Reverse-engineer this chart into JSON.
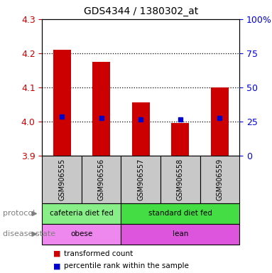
{
  "title": "GDS4344 / 1380302_at",
  "samples": [
    "GSM906555",
    "GSM906556",
    "GSM906557",
    "GSM906558",
    "GSM906559"
  ],
  "bar_values": [
    4.21,
    4.175,
    4.055,
    3.995,
    4.1
  ],
  "bar_bottom": 3.9,
  "percentile_values": [
    4.015,
    4.01,
    4.005,
    4.005,
    4.01
  ],
  "ylim": [
    3.9,
    4.3
  ],
  "yticks_left": [
    3.9,
    4.0,
    4.1,
    4.2,
    4.3
  ],
  "yticks_right": [
    0,
    25,
    50,
    75,
    100
  ],
  "yticks_right_labels": [
    "0",
    "25",
    "50",
    "75",
    "100%"
  ],
  "bar_color": "#cc0000",
  "percentile_color": "#0000cc",
  "dotted_line_color": "#000000",
  "dotted_lines": [
    4.0,
    4.1,
    4.2
  ],
  "protocol_groups": [
    {
      "label": "cafeteria diet fed",
      "start": 0,
      "end": 2,
      "color": "#88ee88"
    },
    {
      "label": "standard diet fed",
      "start": 2,
      "end": 5,
      "color": "#44dd44"
    }
  ],
  "disease_groups": [
    {
      "label": "obese",
      "start": 0,
      "end": 2,
      "color": "#ee88ee"
    },
    {
      "label": "lean",
      "start": 2,
      "end": 5,
      "color": "#dd55dd"
    }
  ],
  "legend_items": [
    {
      "label": "transformed count",
      "color": "#cc0000"
    },
    {
      "label": "percentile rank within the sample",
      "color": "#0000cc"
    }
  ],
  "left_color": "#cc0000",
  "right_color": "#0000dd",
  "background_color": "#ffffff",
  "sample_box_color": "#c8c8c8",
  "label_color": "#808080"
}
